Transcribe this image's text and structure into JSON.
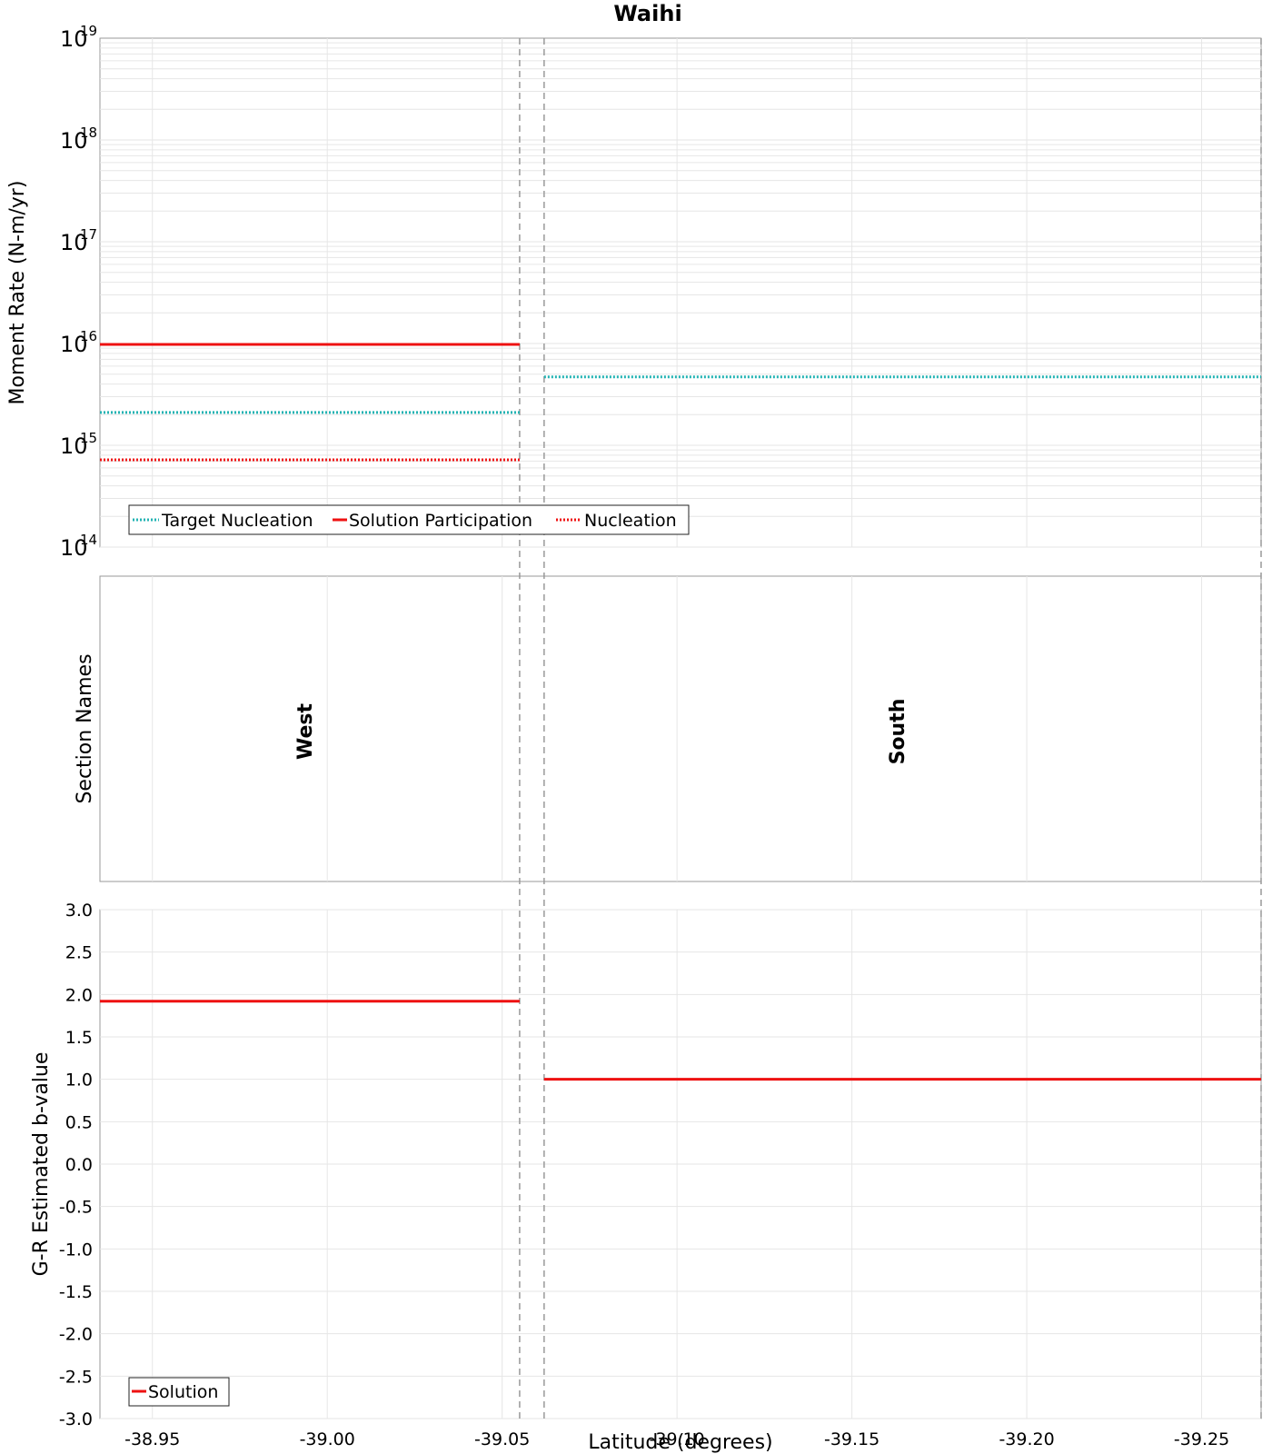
{
  "title": "Waihi",
  "colors": {
    "target_nucleation": "#22b3b3",
    "solution": "#ee1111",
    "nucleation": "#ee1111",
    "divider": "#999999"
  },
  "chart_data": [
    {
      "type": "line",
      "panel": "moment-rate",
      "ylabel": "Moment Rate (N-m/yr)",
      "yscale": "log",
      "ylim": [
        100000000000000.0,
        1e+19
      ],
      "ytick_exponents": [
        "14",
        "15",
        "16",
        "17",
        "18",
        "19"
      ],
      "ytick_base": "10",
      "xlim": [
        -38.935,
        -39.267
      ],
      "section_boundaries": [
        -39.055,
        -39.062,
        -39.267
      ],
      "legend": {
        "placement": "bottom-left",
        "entries": [
          "Target Nucleation",
          "Solution Participation",
          "Nucleation"
        ]
      },
      "series": [
        {
          "name": "Target Nucleation",
          "style": "dotted",
          "segments": [
            {
              "x": [
                -38.935,
                -39.055
              ],
              "y": 2100000000000000.0
            },
            {
              "x": [
                -39.062,
                -39.267
              ],
              "y": 4700000000000000.0
            }
          ]
        },
        {
          "name": "Solution Participation",
          "style": "solid",
          "segments": [
            {
              "x": [
                -38.935,
                -39.055
              ],
              "y": 9800000000000000.0
            }
          ]
        },
        {
          "name": "Nucleation",
          "style": "dotted",
          "segments": [
            {
              "x": [
                -38.935,
                -39.055
              ],
              "y": 720000000000000.0
            }
          ]
        }
      ]
    },
    {
      "type": "table",
      "panel": "section-names",
      "ylabel": "Section Names",
      "sections": [
        {
          "name": "West",
          "x": [
            -38.935,
            -39.055
          ]
        },
        {
          "name": "South",
          "x": [
            -39.062,
            -39.267
          ]
        }
      ]
    },
    {
      "type": "line",
      "panel": "b-value",
      "ylabel": "G-R Estimated b-value",
      "xlabel": "Latitude (degrees)",
      "ylim": [
        -3.0,
        3.0
      ],
      "yticks": [
        "3.0",
        "2.5",
        "2.0",
        "1.5",
        "1.0",
        "0.5",
        "0.0",
        "-0.5",
        "-1.0",
        "-1.5",
        "-2.0",
        "-2.5",
        "-3.0"
      ],
      "xticks": [
        "-38.95",
        "-39.00",
        "-39.05",
        "-39.10",
        "-39.15",
        "-39.20",
        "-39.25"
      ],
      "xtick_values": [
        -38.95,
        -39.0,
        -39.05,
        -39.1,
        -39.15,
        -39.2,
        -39.25
      ],
      "legend": {
        "placement": "bottom-left",
        "entries": [
          "Solution"
        ]
      },
      "series": [
        {
          "name": "Solution",
          "style": "solid",
          "segments": [
            {
              "x": [
                -38.935,
                -39.055
              ],
              "y": 1.92
            },
            {
              "x": [
                -39.062,
                -39.267
              ],
              "y": 1.0
            }
          ]
        }
      ]
    }
  ]
}
